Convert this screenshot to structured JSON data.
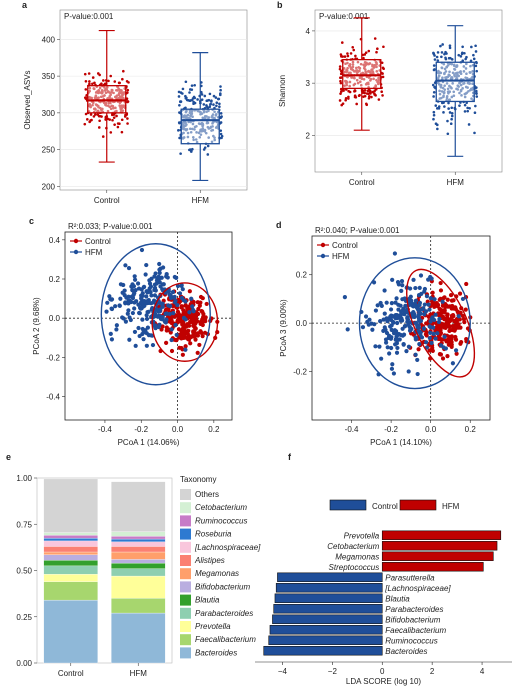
{
  "colors": {
    "control": "#c00000",
    "hfm": "#1f4e99",
    "grid": "#e6e6e6"
  },
  "panel_labels": [
    "a",
    "b",
    "c",
    "d",
    "e",
    "f"
  ],
  "chart_data": [
    {
      "id": "a",
      "type": "box",
      "annotation": "P-value:0.001",
      "ylabel": "Observed_ASVs",
      "categories": [
        "Control",
        "HFM"
      ],
      "ylim": [
        195,
        440
      ],
      "yticks": [
        200,
        250,
        300,
        350,
        400
      ],
      "boxes": [
        {
          "name": "Control",
          "q1": 300,
          "median": 317,
          "q3": 337,
          "whisker_low": 233,
          "whisker_high": 412,
          "min": 222,
          "max": 430
        },
        {
          "name": "HFM",
          "q1": 258,
          "median": 290,
          "q3": 305,
          "whisker_low": 208,
          "whisker_high": 382,
          "min": 208,
          "max": 382
        }
      ]
    },
    {
      "id": "b",
      "type": "box",
      "annotation": "P-value:0.001",
      "ylabel": "Shannon",
      "categories": [
        "Control",
        "HFM"
      ],
      "ylim": [
        1.3,
        4.4
      ],
      "yticks": [
        2,
        3,
        4
      ],
      "boxes": [
        {
          "name": "Control",
          "q1": 2.9,
          "median": 3.15,
          "q3": 3.45,
          "whisker_low": 2.1,
          "whisker_high": 4.25,
          "min": 1.5,
          "max": 4.25
        },
        {
          "name": "HFM",
          "q1": 2.65,
          "median": 3.05,
          "q3": 3.4,
          "whisker_low": 1.6,
          "whisker_high": 4.1,
          "min": 1.5,
          "max": 4.15
        }
      ]
    },
    {
      "id": "c",
      "type": "scatter",
      "annotation": "R²:0.033; P-value:0.001",
      "xlabel": "PCoA 1 (14.06%)",
      "ylabel": "PCoA 2 (9.68%)",
      "xlim": [
        -0.62,
        0.3
      ],
      "ylim": [
        -0.52,
        0.44
      ],
      "xticks": [
        -0.4,
        -0.2,
        0.0,
        0.2
      ],
      "yticks": [
        -0.4,
        -0.2,
        0.0,
        0.2,
        0.4
      ],
      "series": [
        {
          "name": "Control",
          "centroid": [
            0.04,
            -0.01
          ],
          "sd": [
            0.1,
            0.1
          ],
          "ellipse": {
            "cx": 0.04,
            "cy": -0.02,
            "rx": 0.18,
            "ry": 0.2,
            "angle": 0
          }
        },
        {
          "name": "HFM",
          "centroid": [
            -0.15,
            0.08
          ],
          "sd": [
            0.14,
            0.14
          ],
          "ellipse": {
            "cx": -0.12,
            "cy": 0.02,
            "rx": 0.3,
            "ry": 0.36,
            "angle": 0
          }
        }
      ]
    },
    {
      "id": "d",
      "type": "scatter",
      "annotation": "R²:0.040; P-value:0.001",
      "xlabel": "PCoA 1 (14.10%)",
      "ylabel": "PCoA 3 (9.00%)",
      "xlim": [
        -0.6,
        0.3
      ],
      "ylim": [
        -0.4,
        0.36
      ],
      "xticks": [
        -0.4,
        -0.2,
        0.0,
        0.2
      ],
      "yticks": [
        -0.2,
        0.0,
        0.2
      ],
      "series": [
        {
          "name": "Control",
          "centroid": [
            0.06,
            0.0
          ],
          "sd": [
            0.09,
            0.09
          ],
          "ellipse": {
            "cx": 0.05,
            "cy": 0.0,
            "rx": 0.13,
            "ry": 0.24,
            "angle": -25
          }
        },
        {
          "name": "HFM",
          "centroid": [
            -0.12,
            0.02
          ],
          "sd": [
            0.14,
            0.12
          ],
          "ellipse": {
            "cx": -0.08,
            "cy": 0.0,
            "rx": 0.28,
            "ry": 0.27,
            "angle": 0
          }
        }
      ]
    },
    {
      "id": "e",
      "type": "stacked-bar",
      "categories": [
        "Control",
        "HFM"
      ],
      "ylim": [
        0,
        1
      ],
      "yticks": [
        "0.00",
        "0.25",
        "0.50",
        "0.75",
        "1.00"
      ],
      "legend_title": "Taxonomy",
      "series": [
        {
          "name": "Bacteroides",
          "color": "#8fb8d8",
          "values": [
            0.34,
            0.27
          ]
        },
        {
          "name": "Faecalibacterium",
          "color": "#a7d66e",
          "values": [
            0.1,
            0.08
          ]
        },
        {
          "name": "Prevotella",
          "color": "#ffff99",
          "values": [
            0.04,
            0.12
          ]
        },
        {
          "name": "Parabacteroides",
          "color": "#8ecfb0",
          "values": [
            0.045,
            0.04
          ]
        },
        {
          "name": "Blautia",
          "color": "#33a02c",
          "values": [
            0.03,
            0.03
          ]
        },
        {
          "name": "Bifidobacterium",
          "color": "#b9aee0",
          "values": [
            0.03,
            0.02
          ]
        },
        {
          "name": "Megamonas",
          "color": "#ff9f6b",
          "values": [
            0.015,
            0.04
          ]
        },
        {
          "name": "Alistipes",
          "color": "#fb8072",
          "values": [
            0.03,
            0.03
          ]
        },
        {
          "name": "[Lachnospiraceae]",
          "color": "#f9c6dc",
          "values": [
            0.03,
            0.025
          ]
        },
        {
          "name": "Roseburia",
          "color": "#2e7ad1",
          "values": [
            0.015,
            0.015
          ]
        },
        {
          "name": "Ruminococcus",
          "color": "#c77cc7",
          "values": [
            0.015,
            0.015
          ]
        },
        {
          "name": "Cetobacterium",
          "color": "#d4f0d4",
          "values": [
            0.015,
            0.025
          ]
        },
        {
          "name": "Others",
          "color": "#d4d4d4",
          "values": [
            0.29,
            0.27
          ]
        }
      ]
    },
    {
      "id": "f",
      "type": "bar-horizontal",
      "xlabel": "LDA SCORE (log 10)",
      "xlim": [
        -5.1,
        5.2
      ],
      "xticks": [
        -4,
        -2,
        0,
        2,
        4
      ],
      "legend": [
        "Control",
        "HFM"
      ],
      "bars": [
        {
          "name": "Prevotella",
          "group": "HFM",
          "value": 4.75
        },
        {
          "name": "Cetobacterium",
          "group": "HFM",
          "value": 4.6
        },
        {
          "name": "Megamonas",
          "group": "HFM",
          "value": 4.45
        },
        {
          "name": "Streptococcus",
          "group": "HFM",
          "value": 4.05
        },
        {
          "name": "Parasutterella",
          "group": "Control",
          "value": -4.2
        },
        {
          "name": "[Lachnospiraceae]",
          "group": "Control",
          "value": -4.25
        },
        {
          "name": "Blautia",
          "group": "Control",
          "value": -4.3
        },
        {
          "name": "Parabacteroides",
          "group": "Control",
          "value": -4.35
        },
        {
          "name": "Bifidobacterium",
          "group": "Control",
          "value": -4.4
        },
        {
          "name": "Faecalibacterium",
          "group": "Control",
          "value": -4.5
        },
        {
          "name": "Ruminococcus",
          "group": "Control",
          "value": -4.55
        },
        {
          "name": "Bacteroides",
          "group": "Control",
          "value": -4.75
        }
      ]
    }
  ]
}
